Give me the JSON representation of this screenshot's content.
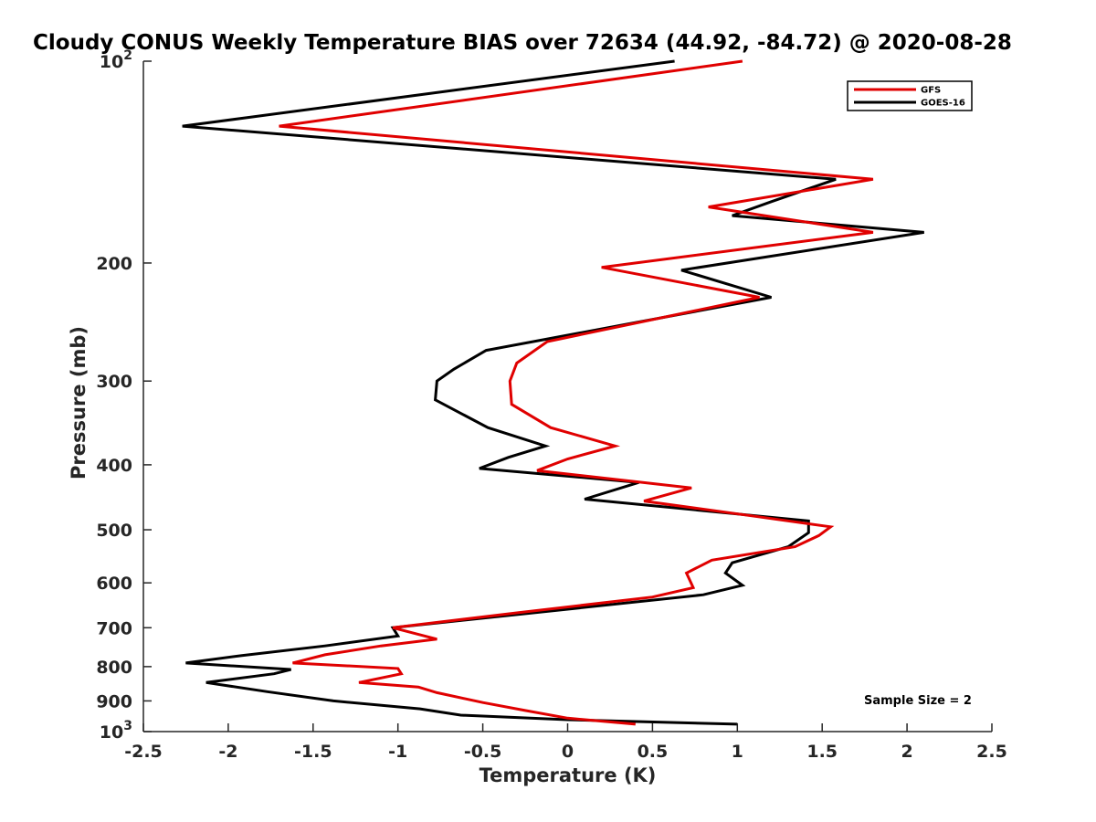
{
  "chart_data": {
    "type": "line",
    "title": "Cloudy CONUS Weekly Temperature BIAS over 72634 (44.92, -84.72) @ 2020-08-28",
    "xlabel": "Temperature (K)",
    "ylabel": "Pressure (mb)",
    "xlim": [
      -2.5,
      2.5
    ],
    "ylim": [
      100,
      1000
    ],
    "y_scale": "log",
    "y_reversed": true,
    "x_ticks": [
      -2.5,
      -2,
      -1.5,
      -1,
      -0.5,
      0,
      0.5,
      1,
      1.5,
      2,
      2.5
    ],
    "x_tick_labels": [
      "-2.5",
      "-2",
      "-1.5",
      "-1",
      "-0.5",
      "0",
      "0.5",
      "1",
      "1.5",
      "2",
      "2.5"
    ],
    "y_ticks": [
      {
        "value": 100,
        "base": "10",
        "exp": "2"
      },
      {
        "value": 200,
        "label": "200"
      },
      {
        "value": 300,
        "label": "300"
      },
      {
        "value": 400,
        "label": "400"
      },
      {
        "value": 500,
        "label": "500"
      },
      {
        "value": 600,
        "label": "600"
      },
      {
        "value": 700,
        "label": "700"
      },
      {
        "value": 800,
        "label": "800"
      },
      {
        "value": 900,
        "label": "900"
      },
      {
        "value": 1000,
        "base": "10",
        "exp": "3"
      }
    ],
    "grid": false,
    "legend_position": "top-right",
    "annotation": "Sample Size = 2",
    "series": [
      {
        "name": "GFS",
        "color": "#e00000",
        "points": [
          [
            1.03,
            100
          ],
          [
            -1.7,
            125
          ],
          [
            1.8,
            150
          ],
          [
            0.83,
            165
          ],
          [
            1.8,
            180
          ],
          [
            0.2,
            203
          ],
          [
            1.13,
            225
          ],
          [
            -0.12,
            262
          ],
          [
            -0.3,
            282
          ],
          [
            -0.34,
            300
          ],
          [
            -0.33,
            325
          ],
          [
            -0.1,
            352
          ],
          [
            0.28,
            375
          ],
          [
            0.0,
            392
          ],
          [
            -0.18,
            408
          ],
          [
            0.73,
            433
          ],
          [
            0.45,
            453
          ],
          [
            1.12,
            478
          ],
          [
            1.55,
            495
          ],
          [
            1.48,
            510
          ],
          [
            1.34,
            530
          ],
          [
            0.85,
            555
          ],
          [
            0.7,
            580
          ],
          [
            0.74,
            610
          ],
          [
            0.5,
            630
          ],
          [
            -0.3,
            665
          ],
          [
            -1.03,
            700
          ],
          [
            -0.77,
            728
          ],
          [
            -1.1,
            745
          ],
          [
            -1.43,
            768
          ],
          [
            -1.62,
            790
          ],
          [
            -1.0,
            805
          ],
          [
            -0.98,
            820
          ],
          [
            -1.23,
            845
          ],
          [
            -0.88,
            858
          ],
          [
            -0.77,
            875
          ],
          [
            -0.5,
            905
          ],
          [
            -0.25,
            930
          ],
          [
            0.0,
            955
          ],
          [
            0.4,
            975
          ]
        ]
      },
      {
        "name": "GOES-16",
        "color": "#000000",
        "points": [
          [
            0.63,
            100
          ],
          [
            -2.27,
            125
          ],
          [
            1.58,
            150
          ],
          [
            1.2,
            162
          ],
          [
            0.97,
            170
          ],
          [
            2.1,
            180
          ],
          [
            0.67,
            205
          ],
          [
            1.2,
            225
          ],
          [
            -0.48,
            270
          ],
          [
            -0.67,
            288
          ],
          [
            -0.77,
            300
          ],
          [
            -0.78,
            320
          ],
          [
            -0.47,
            352
          ],
          [
            -0.13,
            375
          ],
          [
            -0.35,
            390
          ],
          [
            -0.52,
            405
          ],
          [
            0.42,
            425
          ],
          [
            0.1,
            450
          ],
          [
            1.42,
            485
          ],
          [
            1.42,
            505
          ],
          [
            1.3,
            530
          ],
          [
            0.97,
            560
          ],
          [
            0.93,
            580
          ],
          [
            1.03,
            605
          ],
          [
            0.8,
            625
          ],
          [
            -1.03,
            700
          ],
          [
            -1.0,
            720
          ],
          [
            -1.43,
            745
          ],
          [
            -1.92,
            770
          ],
          [
            -2.25,
            790
          ],
          [
            -1.63,
            808
          ],
          [
            -1.73,
            820
          ],
          [
            -2.13,
            845
          ],
          [
            -1.77,
            872
          ],
          [
            -1.38,
            900
          ],
          [
            -0.87,
            925
          ],
          [
            -0.63,
            945
          ],
          [
            0.0,
            960
          ],
          [
            1.0,
            975
          ]
        ]
      }
    ]
  }
}
